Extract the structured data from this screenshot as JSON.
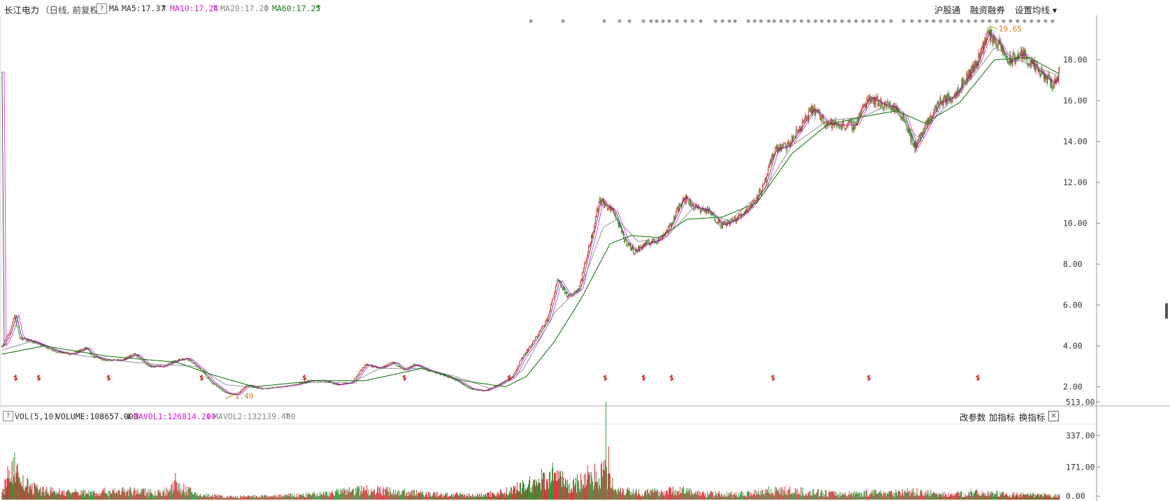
{
  "header": {
    "stock_name": "长江电力",
    "period": "（日线, 前复权）",
    "help": "?",
    "ma_label": "MA",
    "ma5": "MA5:17.37",
    "ma10": "MA10:17.24",
    "ma20": "MA20:17.20",
    "ma60": "MA60:17.25",
    "arrow_up": "↑",
    "btn_hgt": "沪股通",
    "btn_margin": "融资融券",
    "btn_settings": "设置均线 ▾"
  },
  "volume_header": {
    "help": "?",
    "vol_label": "VOL(5,10)",
    "volume": "VOLUME:108657.000",
    "mavol1": "MAVOL1:126814.200",
    "mavol2": "MAVOL2:132139.400",
    "arrow_down": "↓",
    "arrow_up": "↑",
    "btn_params": "改参数",
    "btn_add": "加指标",
    "btn_switch": "换指标",
    "close": "×"
  },
  "colors": {
    "up": "#e0313a",
    "down": "#2d9b3a",
    "ma5": "#333333",
    "ma10": "#d01fd0",
    "ma20": "#888888",
    "ma60": "#1a7a1a",
    "annotation": "#d87a10",
    "dividend_marker": "#d01010"
  },
  "chart_data": {
    "type": "candlestick",
    "price_axis": {
      "ticks": [
        "18.00",
        "16.00",
        "14.00",
        "12.00",
        "10.00",
        "8.00",
        "6.00",
        "4.00",
        "2.00"
      ],
      "min": 1.2,
      "max": 20.1
    },
    "volume_axis": {
      "ticks": [
        "513.00",
        "337.00",
        "171.00",
        "0.00"
      ],
      "max": 540
    },
    "annotations": {
      "high": "19.65",
      "low": "1.49"
    },
    "dividend_marker": "$",
    "news_marker": "✱",
    "price_path": [
      [
        0,
        4.0
      ],
      [
        10,
        4.6
      ],
      [
        18,
        5.5
      ],
      [
        25,
        4.4
      ],
      [
        45,
        4.2
      ],
      [
        60,
        4.0
      ],
      [
        80,
        3.7
      ],
      [
        100,
        3.6
      ],
      [
        120,
        3.9
      ],
      [
        130,
        3.5
      ],
      [
        150,
        3.3
      ],
      [
        170,
        3.3
      ],
      [
        190,
        3.6
      ],
      [
        210,
        3.0
      ],
      [
        230,
        3.0
      ],
      [
        250,
        3.3
      ],
      [
        265,
        3.4
      ],
      [
        285,
        2.8
      ],
      [
        300,
        2.2
      ],
      [
        320,
        1.7
      ],
      [
        335,
        1.6
      ],
      [
        350,
        2.1
      ],
      [
        370,
        1.9
      ],
      [
        400,
        2.0
      ],
      [
        420,
        2.1
      ],
      [
        440,
        2.3
      ],
      [
        460,
        2.3
      ],
      [
        480,
        2.1
      ],
      [
        500,
        2.2
      ],
      [
        520,
        3.1
      ],
      [
        540,
        2.9
      ],
      [
        560,
        3.2
      ],
      [
        575,
        2.8
      ],
      [
        590,
        3.1
      ],
      [
        610,
        2.8
      ],
      [
        630,
        2.6
      ],
      [
        650,
        2.3
      ],
      [
        670,
        1.9
      ],
      [
        690,
        1.8
      ],
      [
        710,
        2.1
      ],
      [
        730,
        2.5
      ],
      [
        745,
        3.5
      ],
      [
        760,
        4.2
      ],
      [
        780,
        5.3
      ],
      [
        795,
        7.2
      ],
      [
        810,
        6.4
      ],
      [
        825,
        6.8
      ],
      [
        835,
        8.2
      ],
      [
        845,
        9.6
      ],
      [
        855,
        11.2
      ],
      [
        865,
        10.8
      ],
      [
        875,
        10.6
      ],
      [
        890,
        9.2
      ],
      [
        905,
        8.6
      ],
      [
        920,
        9.0
      ],
      [
        940,
        9.2
      ],
      [
        955,
        9.8
      ],
      [
        975,
        11.3
      ],
      [
        990,
        10.8
      ],
      [
        1010,
        10.6
      ],
      [
        1030,
        9.9
      ],
      [
        1050,
        10.2
      ],
      [
        1070,
        10.8
      ],
      [
        1090,
        11.8
      ],
      [
        1105,
        13.6
      ],
      [
        1125,
        13.8
      ],
      [
        1140,
        14.6
      ],
      [
        1160,
        15.6
      ],
      [
        1180,
        14.9
      ],
      [
        1200,
        14.8
      ],
      [
        1220,
        14.8
      ],
      [
        1240,
        16.2
      ],
      [
        1260,
        15.8
      ],
      [
        1275,
        15.7
      ],
      [
        1290,
        15.2
      ],
      [
        1305,
        13.7
      ],
      [
        1320,
        14.6
      ],
      [
        1340,
        15.9
      ],
      [
        1360,
        16.2
      ],
      [
        1380,
        17.1
      ],
      [
        1395,
        17.9
      ],
      [
        1410,
        19.3
      ],
      [
        1425,
        18.8
      ],
      [
        1440,
        17.9
      ],
      [
        1460,
        18.3
      ],
      [
        1475,
        17.7
      ],
      [
        1490,
        17.2
      ],
      [
        1505,
        16.8
      ],
      [
        1513,
        17.4
      ]
    ],
    "volume_path": [
      [
        0,
        28
      ],
      [
        15,
        220
      ],
      [
        30,
        95
      ],
      [
        50,
        60
      ],
      [
        80,
        45
      ],
      [
        120,
        40
      ],
      [
        170,
        50
      ],
      [
        230,
        40
      ],
      [
        250,
        80
      ],
      [
        280,
        28
      ],
      [
        330,
        15
      ],
      [
        400,
        22
      ],
      [
        450,
        30
      ],
      [
        520,
        60
      ],
      [
        570,
        45
      ],
      [
        620,
        30
      ],
      [
        680,
        25
      ],
      [
        720,
        45
      ],
      [
        760,
        95
      ],
      [
        790,
        150
      ],
      [
        810,
        80
      ],
      [
        840,
        120
      ],
      [
        860,
        170
      ],
      [
        880,
        60
      ],
      [
        920,
        40
      ],
      [
        970,
        55
      ],
      [
        1000,
        35
      ],
      [
        1050,
        30
      ],
      [
        1100,
        55
      ],
      [
        1150,
        45
      ],
      [
        1200,
        32
      ],
      [
        1250,
        40
      ],
      [
        1300,
        45
      ],
      [
        1350,
        30
      ],
      [
        1400,
        40
      ],
      [
        1450,
        28
      ],
      [
        1513,
        22
      ]
    ],
    "volume_spikes": [
      [
        16,
        220
      ],
      [
        248,
        140
      ],
      [
        796,
        150
      ],
      [
        864,
        513
      ],
      [
        868,
        280
      ],
      [
        838,
        180
      ]
    ],
    "ma_paths": {
      "ma20": [
        [
          0,
          3.8
        ],
        [
          40,
          4.2
        ],
        [
          100,
          3.6
        ],
        [
          160,
          3.3
        ],
        [
          220,
          3.1
        ],
        [
          280,
          3.0
        ],
        [
          320,
          2.1
        ],
        [
          380,
          1.9
        ],
        [
          440,
          2.2
        ],
        [
          500,
          2.2
        ],
        [
          540,
          2.9
        ],
        [
          600,
          2.9
        ],
        [
          650,
          2.5
        ],
        [
          700,
          1.9
        ],
        [
          745,
          2.8
        ],
        [
          790,
          5.6
        ],
        [
          830,
          7.0
        ],
        [
          860,
          9.8
        ],
        [
          880,
          10.2
        ],
        [
          910,
          9.1
        ],
        [
          950,
          9.3
        ],
        [
          990,
          10.8
        ],
        [
          1040,
          10.1
        ],
        [
          1090,
          11.6
        ],
        [
          1130,
          13.8
        ],
        [
          1180,
          15.0
        ],
        [
          1230,
          15.2
        ],
        [
          1270,
          15.8
        ],
        [
          1310,
          14.2
        ],
        [
          1350,
          15.7
        ],
        [
          1390,
          17.2
        ],
        [
          1420,
          18.6
        ],
        [
          1460,
          17.9
        ],
        [
          1513,
          17.2
        ]
      ],
      "ma60": [
        [
          0,
          3.6
        ],
        [
          60,
          4.0
        ],
        [
          150,
          3.5
        ],
        [
          250,
          3.2
        ],
        [
          300,
          2.6
        ],
        [
          360,
          2.0
        ],
        [
          450,
          2.3
        ],
        [
          520,
          2.3
        ],
        [
          600,
          2.9
        ],
        [
          660,
          2.3
        ],
        [
          720,
          2.0
        ],
        [
          750,
          2.5
        ],
        [
          790,
          4.2
        ],
        [
          830,
          6.4
        ],
        [
          870,
          9.0
        ],
        [
          900,
          9.4
        ],
        [
          940,
          9.3
        ],
        [
          980,
          10.2
        ],
        [
          1030,
          10.3
        ],
        [
          1080,
          11.0
        ],
        [
          1130,
          13.4
        ],
        [
          1180,
          14.8
        ],
        [
          1230,
          15.2
        ],
        [
          1280,
          15.5
        ],
        [
          1320,
          14.9
        ],
        [
          1370,
          15.9
        ],
        [
          1420,
          18.0
        ],
        [
          1470,
          18.1
        ],
        [
          1513,
          17.3
        ]
      ]
    }
  }
}
